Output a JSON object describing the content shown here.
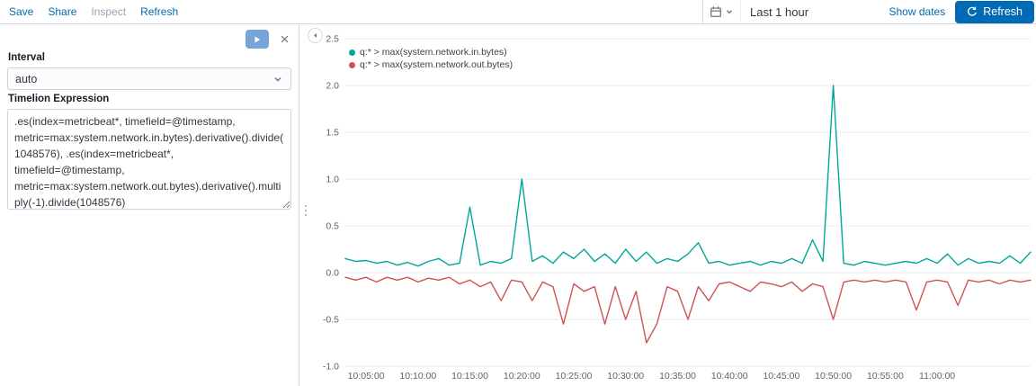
{
  "topbar": {
    "save": "Save",
    "share": "Share",
    "inspect": "Inspect",
    "refresh": "Refresh"
  },
  "datepicker": {
    "value": "Last 1 hour",
    "show_dates_label": "Show dates",
    "refresh_label": "Refresh"
  },
  "editor": {
    "interval_label": "Interval",
    "interval_value": "auto",
    "expression_label": "Timelion Expression",
    "expression_value": ".es(index=metricbeat*, timefield=@timestamp, metric=max:system.network.in.bytes).derivative().divide(1048576), .es(index=metricbeat*, timefield=@timestamp, metric=max:system.network.out.bytes).derivative().multiply(-1).divide(1048576)"
  },
  "colors": {
    "primary": "#006bb4",
    "series_in": "#00a69b",
    "series_out": "#d05252"
  },
  "chart_data": {
    "type": "line",
    "title": "",
    "xlabel": "",
    "ylabel": "",
    "x_start": "10:03:00",
    "x_step_minutes": 1,
    "x_tick_indices": [
      2,
      7,
      12,
      17,
      22,
      27,
      32,
      37,
      42,
      47,
      52,
      57
    ],
    "x_tick_labels": [
      "10:05:00",
      "10:10:00",
      "10:15:00",
      "10:20:00",
      "10:25:00",
      "10:30:00",
      "10:35:00",
      "10:40:00",
      "10:45:00",
      "10:50:00",
      "10:55:00",
      "11:00:00"
    ],
    "y_ticks": [
      2.5,
      2.0,
      1.5,
      1.0,
      0.5,
      0.0,
      -0.5,
      -1.0
    ],
    "ylim": [
      -1.0,
      2.5
    ],
    "grid": "horizontal",
    "legend_position": "top-left",
    "series": [
      {
        "name": "q:* > max(system.network.in.bytes)",
        "color": "#00a69b",
        "values": [
          0.15,
          0.12,
          0.13,
          0.1,
          0.12,
          0.08,
          0.11,
          0.07,
          0.12,
          0.15,
          0.08,
          0.1,
          0.7,
          0.08,
          0.12,
          0.1,
          0.15,
          1.0,
          0.12,
          0.18,
          0.1,
          0.22,
          0.15,
          0.25,
          0.12,
          0.2,
          0.1,
          0.25,
          0.12,
          0.22,
          0.1,
          0.15,
          0.12,
          0.2,
          0.32,
          0.1,
          0.12,
          0.08,
          0.1,
          0.12,
          0.08,
          0.12,
          0.1,
          0.15,
          0.1,
          0.35,
          0.12,
          2.0,
          0.1,
          0.08,
          0.12,
          0.1,
          0.08,
          0.1,
          0.12,
          0.1,
          0.15,
          0.1,
          0.2,
          0.08,
          0.15,
          0.1,
          0.12,
          0.1,
          0.18,
          0.1,
          0.22
        ]
      },
      {
        "name": "q:* > max(system.network.out.bytes)",
        "color": "#d05252",
        "values": [
          -0.05,
          -0.08,
          -0.05,
          -0.1,
          -0.05,
          -0.08,
          -0.05,
          -0.1,
          -0.06,
          -0.08,
          -0.05,
          -0.12,
          -0.08,
          -0.15,
          -0.1,
          -0.3,
          -0.08,
          -0.1,
          -0.3,
          -0.1,
          -0.15,
          -0.55,
          -0.12,
          -0.2,
          -0.15,
          -0.55,
          -0.15,
          -0.5,
          -0.2,
          -0.75,
          -0.55,
          -0.15,
          -0.2,
          -0.5,
          -0.15,
          -0.3,
          -0.12,
          -0.1,
          -0.15,
          -0.2,
          -0.1,
          -0.12,
          -0.15,
          -0.1,
          -0.2,
          -0.12,
          -0.15,
          -0.5,
          -0.1,
          -0.08,
          -0.1,
          -0.08,
          -0.1,
          -0.08,
          -0.1,
          -0.4,
          -0.1,
          -0.08,
          -0.1,
          -0.35,
          -0.08,
          -0.1,
          -0.08,
          -0.12,
          -0.08,
          -0.1,
          -0.08
        ]
      }
    ]
  }
}
